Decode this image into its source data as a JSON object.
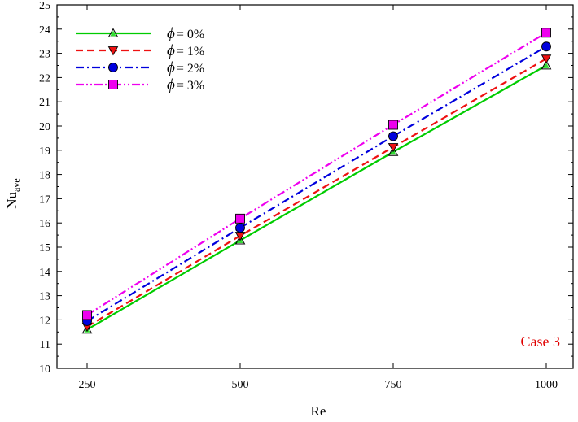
{
  "chart_data": {
    "type": "line",
    "x_categories": [
      "250",
      "500",
      "750",
      "1000"
    ],
    "x": [
      250,
      500,
      750,
      1000
    ],
    "xlabel": "Re",
    "ylabel": "Nu",
    "ylabel_sub": "ave",
    "ylim": [
      10,
      25
    ],
    "yticks": [
      10,
      11,
      12,
      13,
      14,
      15,
      16,
      17,
      18,
      19,
      20,
      21,
      22,
      23,
      24,
      25
    ],
    "grid": false,
    "legend_position": "top-left",
    "annotation": "Case 3",
    "series": [
      {
        "name": "ϕ = 0%",
        "values": [
          11.6,
          15.28,
          18.93,
          22.5
        ],
        "color": "#00cc00",
        "dash": "solid",
        "marker": "triangle-up"
      },
      {
        "name": "ϕ = 1%",
        "values": [
          11.72,
          15.47,
          19.13,
          22.78
        ],
        "color": "#ee1111",
        "dash": "dashed",
        "marker": "triangle-down"
      },
      {
        "name": "ϕ = 2%",
        "values": [
          11.95,
          15.8,
          19.58,
          23.28
        ],
        "color": "#0000dd",
        "dash": "dash-dot",
        "marker": "circle"
      },
      {
        "name": "ϕ = 3%",
        "values": [
          12.2,
          16.18,
          20.05,
          23.85
        ],
        "color": "#ee00ee",
        "dash": "dash-dot-dot",
        "marker": "square"
      }
    ]
  }
}
